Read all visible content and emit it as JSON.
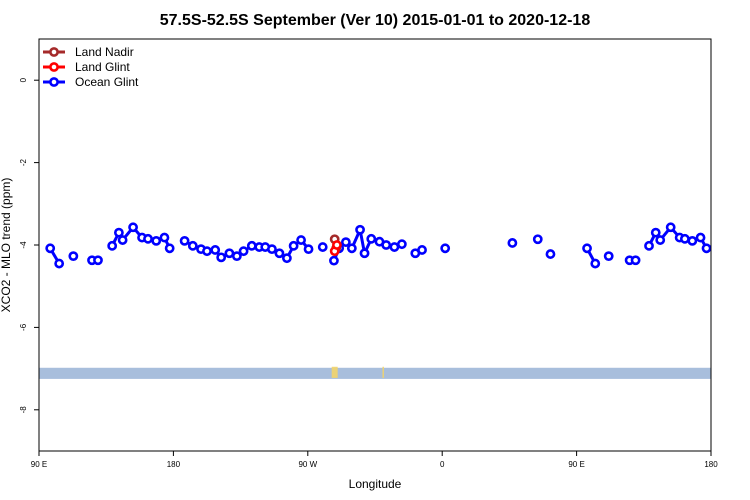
{
  "chart_data": {
    "type": "line",
    "title": "57.5S-52.5S September (Ver 10)   2015-01-01 to 2020-12-18",
    "xlabel": "Longitude",
    "ylabel": "XCO2 - MLO trend (ppm)",
    "xlim": [
      90,
      540
    ],
    "ylim": [
      -9,
      1
    ],
    "x_ticks": [
      {
        "value": 90,
        "label": "90 E"
      },
      {
        "value": 180,
        "label": "180"
      },
      {
        "value": 270,
        "label": "90 W"
      },
      {
        "value": 360,
        "label": "0"
      },
      {
        "value": 450,
        "label": "90 E"
      },
      {
        "value": 540,
        "label": "180"
      }
    ],
    "y_ticks": [
      {
        "value": 0,
        "label": "0"
      },
      {
        "value": -2,
        "label": "-2"
      },
      {
        "value": -4,
        "label": "-4"
      },
      {
        "value": -6,
        "label": "-6"
      },
      {
        "value": -8,
        "label": "-8"
      }
    ],
    "legend_position": "top-left",
    "grid": false,
    "series": [
      {
        "name": "Land Nadir",
        "color": "#a52a2a",
        "points": [
          [
            288.0,
            -3.86
          ],
          [
            289.0,
            -4.08
          ]
        ]
      },
      {
        "name": "Land Glint",
        "color": "#ff0000",
        "points": [
          [
            288.0,
            -4.15
          ],
          [
            289.5,
            -4.0
          ]
        ]
      },
      {
        "name": "Ocean Glint",
        "color": "#0000ff",
        "segments": [
          [
            [
              97.5,
              -4.08
            ],
            [
              103.5,
              -4.45
            ]
          ],
          [
            [
              113.0,
              -4.27
            ]
          ],
          [
            [
              125.5,
              -4.37
            ],
            [
              129.5,
              -4.37
            ]
          ],
          [
            [
              139.0,
              -4.02
            ],
            [
              143.5,
              -3.7
            ],
            [
              146.0,
              -3.88
            ],
            [
              153.0,
              -3.57
            ],
            [
              159.0,
              -3.82
            ],
            [
              163.0,
              -3.85
            ],
            [
              168.5,
              -3.9
            ],
            [
              174.0,
              -3.82
            ],
            [
              177.5,
              -4.08
            ]
          ],
          [
            [
              187.5,
              -3.9
            ],
            [
              193.0,
              -4.02
            ],
            [
              198.5,
              -4.1
            ],
            [
              202.5,
              -4.15
            ],
            [
              208.0,
              -4.12
            ],
            [
              212.0,
              -4.3
            ],
            [
              217.5,
              -4.2
            ],
            [
              222.5,
              -4.27
            ],
            [
              227.0,
              -4.15
            ],
            [
              232.5,
              -4.02
            ],
            [
              237.5,
              -4.05
            ],
            [
              241.5,
              -4.05
            ],
            [
              246.0,
              -4.1
            ],
            [
              251.0,
              -4.2
            ],
            [
              256.0,
              -4.32
            ],
            [
              260.5,
              -4.02
            ],
            [
              265.5,
              -3.88
            ],
            [
              270.5,
              -4.1
            ]
          ],
          [
            [
              280.0,
              -4.05
            ]
          ],
          [
            [
              287.5,
              -4.38
            ],
            [
              291.0,
              -4.08
            ],
            [
              295.5,
              -3.93
            ],
            [
              299.5,
              -4.08
            ],
            [
              305.0,
              -3.63
            ],
            [
              308.0,
              -4.2
            ],
            [
              312.5,
              -3.85
            ],
            [
              318.0,
              -3.92
            ],
            [
              322.5,
              -4.0
            ],
            [
              328.0,
              -4.05
            ],
            [
              333.0,
              -3.98
            ]
          ],
          [
            [
              342.0,
              -4.2
            ],
            [
              346.5,
              -4.12
            ]
          ],
          [
            [
              362.0,
              -4.08
            ]
          ],
          [
            [
              407.0,
              -3.95
            ]
          ],
          [
            [
              424.0,
              -3.86
            ]
          ],
          [
            [
              432.5,
              -4.22
            ]
          ],
          [
            [
              457.0,
              -4.08
            ],
            [
              462.5,
              -4.45
            ]
          ],
          [
            [
              471.5,
              -4.27
            ]
          ],
          [
            [
              485.5,
              -4.37
            ],
            [
              489.5,
              -4.37
            ]
          ],
          [
            [
              498.5,
              -4.02
            ],
            [
              503.0,
              -3.7
            ],
            [
              506.0,
              -3.88
            ],
            [
              513.0,
              -3.57
            ],
            [
              519.0,
              -3.82
            ],
            [
              522.5,
              -3.85
            ],
            [
              527.5,
              -3.9
            ],
            [
              533.0,
              -3.82
            ],
            [
              537.0,
              -4.08
            ]
          ]
        ]
      }
    ],
    "band": {
      "y_from": -7.25,
      "y_to": -6.98,
      "color": "#a8bedc",
      "land_color": "#f2d46a",
      "land_x": [
        [
          286,
          290
        ],
        [
          320,
          321
        ]
      ]
    }
  }
}
